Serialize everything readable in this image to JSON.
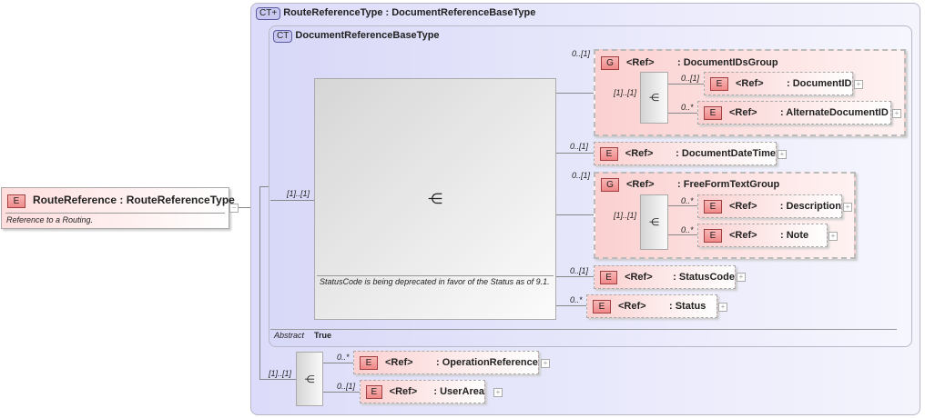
{
  "root": {
    "badge": "E",
    "name": "RouteReference",
    "type": ": RouteReferenceType",
    "description": "Reference to a Routing.",
    "toggle": "−"
  },
  "outer": {
    "badge": "CT+",
    "title": "RouteReferenceType : DocumentReferenceBaseType"
  },
  "inner": {
    "badge": "CT",
    "title": "DocumentReferenceBaseType",
    "annotation": "StatusCode is being deprecated in favor of the Status as of 9.1.",
    "abstract_label": "Abstract",
    "abstract_value": "True"
  },
  "cards": {
    "one": "[1]..[1]",
    "opt": "0..[1]",
    "many": "0..*"
  },
  "ref": "<Ref>",
  "items": {
    "docids": {
      "badge": "G",
      "name": ": DocumentIDsGroup"
    },
    "docid": {
      "badge": "E",
      "name": ": DocumentID"
    },
    "altdocid": {
      "badge": "E",
      "name": ": AlternateDocumentID"
    },
    "datetime": {
      "badge": "E",
      "name": ": DocumentDateTime"
    },
    "freeform": {
      "badge": "G",
      "name": ": FreeFormTextGroup"
    },
    "description": {
      "badge": "E",
      "name": ": Description"
    },
    "note": {
      "badge": "E",
      "name": ": Note"
    },
    "statuscode": {
      "badge": "E",
      "name": ": StatusCode"
    },
    "status": {
      "badge": "E",
      "name": ": Status"
    },
    "opref": {
      "badge": "E",
      "name": ": OperationReference"
    },
    "userarea": {
      "badge": "E",
      "name": ": UserArea"
    }
  },
  "plus": "+"
}
